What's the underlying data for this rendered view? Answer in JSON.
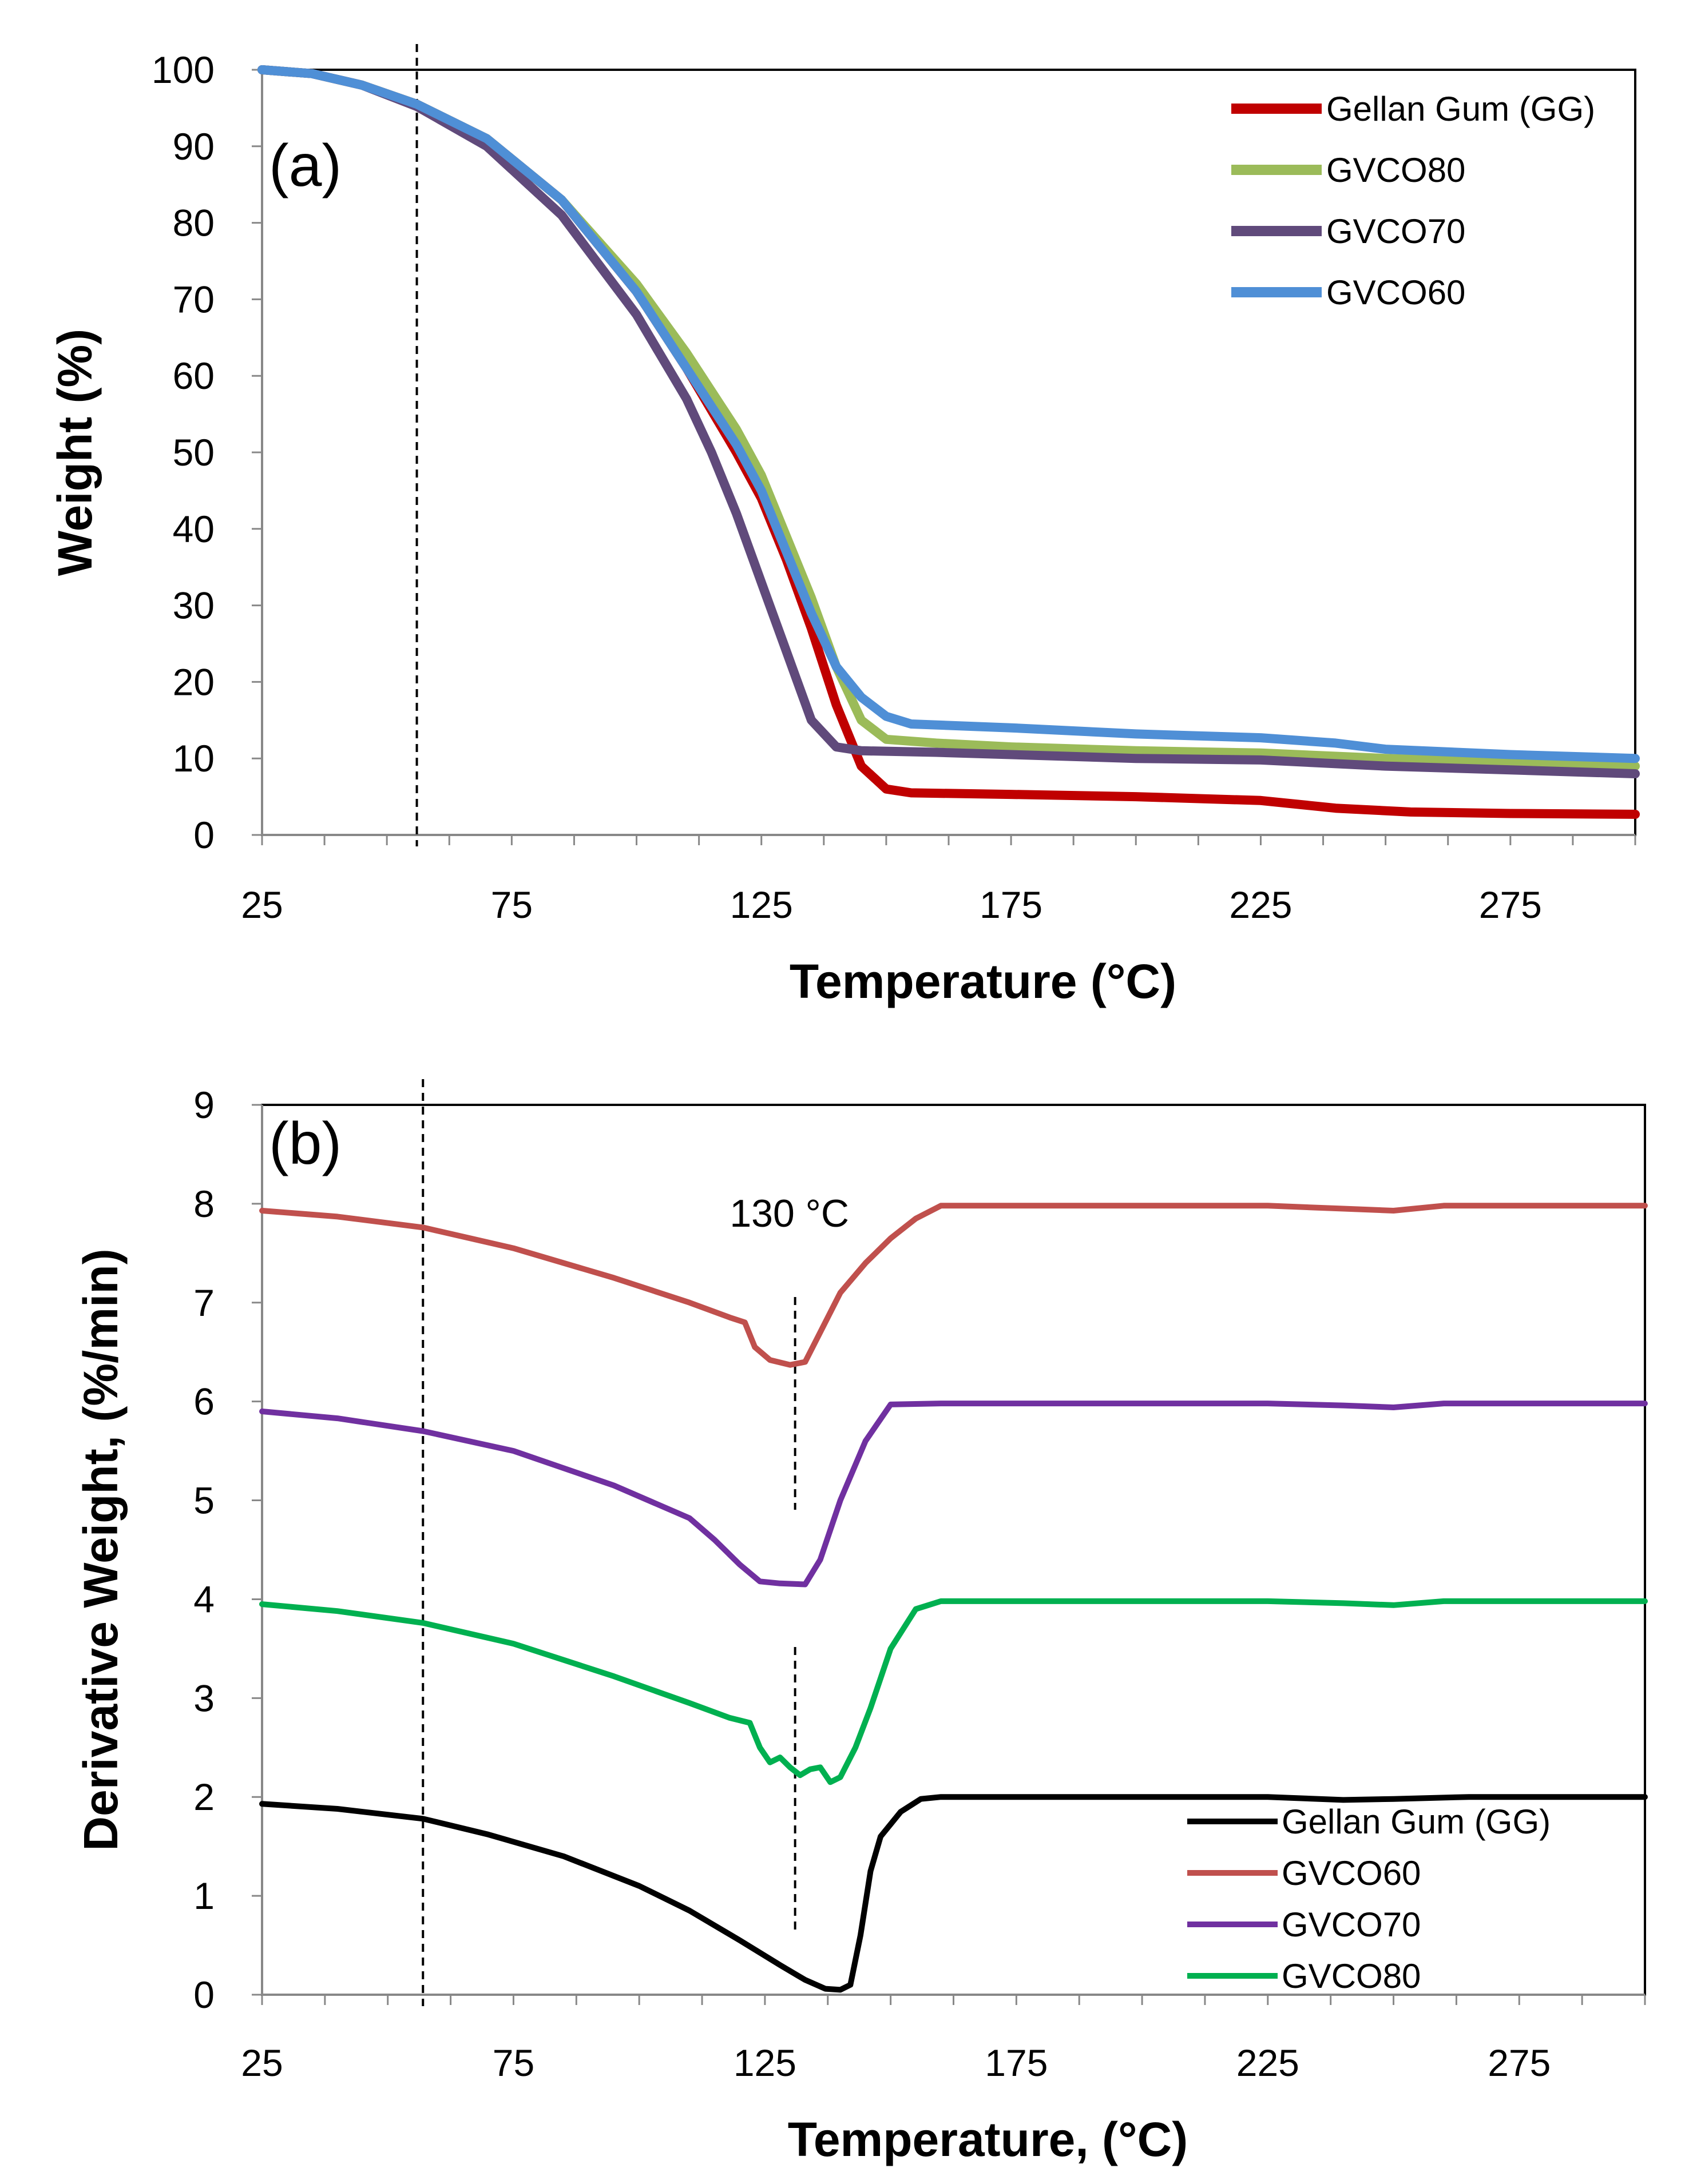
{
  "chart_data": [
    {
      "type": "line",
      "panel_label": "(a)",
      "title": "",
      "xlabel": "Temperature (°C)",
      "ylabel": "Weight (%)",
      "xlim": [
        25,
        300
      ],
      "ylim": [
        0,
        100
      ],
      "xticks": [
        25,
        75,
        125,
        175,
        225,
        275
      ],
      "yticks": [
        0,
        10,
        20,
        30,
        40,
        50,
        60,
        70,
        80,
        90,
        100
      ],
      "reference_line_x": 56,
      "legend_position": "top-right",
      "series": [
        {
          "name": "Gellan Gum (GG)",
          "color": "#c00000",
          "points": [
            [
              25,
              100
            ],
            [
              35,
              99.5
            ],
            [
              45,
              98
            ],
            [
              56,
              95.5
            ],
            [
              70,
              91
            ],
            [
              85,
              83
            ],
            [
              100,
              71
            ],
            [
              110,
              61
            ],
            [
              120,
              50
            ],
            [
              125,
              44
            ],
            [
              130,
              36
            ],
            [
              135,
              27
            ],
            [
              140,
              17
            ],
            [
              145,
              9
            ],
            [
              150,
              6
            ],
            [
              155,
              5.5
            ],
            [
              175,
              5.3
            ],
            [
              200,
              5
            ],
            [
              225,
              4.5
            ],
            [
              240,
              3.5
            ],
            [
              255,
              3
            ],
            [
              275,
              2.8
            ],
            [
              300,
              2.7
            ]
          ]
        },
        {
          "name": "GVCO80",
          "color": "#9bbb59",
          "points": [
            [
              25,
              100
            ],
            [
              35,
              99.5
            ],
            [
              45,
              98
            ],
            [
              56,
              95.5
            ],
            [
              70,
              91
            ],
            [
              85,
              83
            ],
            [
              100,
              72
            ],
            [
              110,
              63
            ],
            [
              120,
              53
            ],
            [
              125,
              47
            ],
            [
              130,
              39
            ],
            [
              135,
              31
            ],
            [
              140,
              22
            ],
            [
              145,
              15
            ],
            [
              150,
              12.5
            ],
            [
              160,
              12
            ],
            [
              175,
              11.5
            ],
            [
              200,
              11
            ],
            [
              225,
              10.7
            ],
            [
              250,
              10
            ],
            [
              275,
              9.5
            ],
            [
              300,
              9
            ]
          ]
        },
        {
          "name": "GVCO70",
          "color": "#604a7b",
          "points": [
            [
              25,
              100
            ],
            [
              35,
              99.5
            ],
            [
              45,
              98
            ],
            [
              56,
              95.2
            ],
            [
              70,
              90
            ],
            [
              85,
              81
            ],
            [
              100,
              68
            ],
            [
              110,
              57
            ],
            [
              115,
              50
            ],
            [
              120,
              42
            ],
            [
              125,
              33
            ],
            [
              130,
              24
            ],
            [
              135,
              15
            ],
            [
              140,
              11.5
            ],
            [
              145,
              11
            ],
            [
              160,
              10.8
            ],
            [
              175,
              10.5
            ],
            [
              200,
              10
            ],
            [
              225,
              9.8
            ],
            [
              250,
              9
            ],
            [
              275,
              8.5
            ],
            [
              300,
              8
            ]
          ]
        },
        {
          "name": "GVCO60",
          "color": "#4f8fd6",
          "points": [
            [
              25,
              100
            ],
            [
              35,
              99.5
            ],
            [
              45,
              98
            ],
            [
              56,
              95.5
            ],
            [
              70,
              91
            ],
            [
              85,
              83
            ],
            [
              100,
              71
            ],
            [
              110,
              61
            ],
            [
              120,
              51
            ],
            [
              125,
              45
            ],
            [
              130,
              37
            ],
            [
              135,
              29
            ],
            [
              140,
              22
            ],
            [
              145,
              18
            ],
            [
              150,
              15.5
            ],
            [
              155,
              14.5
            ],
            [
              175,
              14
            ],
            [
              200,
              13.2
            ],
            [
              225,
              12.7
            ],
            [
              240,
              12
            ],
            [
              250,
              11.2
            ],
            [
              275,
              10.5
            ],
            [
              300,
              10
            ]
          ]
        }
      ]
    },
    {
      "type": "line",
      "panel_label": "(b)",
      "title": "",
      "xlabel": "Temperature, (°C)",
      "ylabel": "Derivative Weight, (%/min)",
      "xlim": [
        25,
        300
      ],
      "ylim": [
        0,
        9
      ],
      "xticks": [
        25,
        75,
        125,
        175,
        225,
        275
      ],
      "yticks": [
        0,
        1,
        2,
        3,
        4,
        5,
        6,
        7,
        8,
        9
      ],
      "reference_line_x": 57,
      "annotation": {
        "text": "130 °C",
        "x": 131
      },
      "legend_position": "bottom-right",
      "series": [
        {
          "name": "Gellan Gum (GG)",
          "color": "#000000",
          "points": [
            [
              25,
              1.93
            ],
            [
              40,
              1.88
            ],
            [
              57,
              1.78
            ],
            [
              70,
              1.62
            ],
            [
              85,
              1.4
            ],
            [
              100,
              1.1
            ],
            [
              110,
              0.85
            ],
            [
              120,
              0.55
            ],
            [
              128,
              0.3
            ],
            [
              133,
              0.15
            ],
            [
              137,
              0.06
            ],
            [
              140,
              0.05
            ],
            [
              142,
              0.1
            ],
            [
              144,
              0.6
            ],
            [
              146,
              1.25
            ],
            [
              148,
              1.6
            ],
            [
              152,
              1.85
            ],
            [
              156,
              1.98
            ],
            [
              160,
              2.0
            ],
            [
              225,
              2.0
            ],
            [
              240,
              1.97
            ],
            [
              250,
              1.98
            ],
            [
              265,
              2.0
            ],
            [
              300,
              2.0
            ]
          ]
        },
        {
          "name": "GVCO60",
          "color": "#c0504d",
          "points": [
            [
              25,
              7.93
            ],
            [
              40,
              7.87
            ],
            [
              57,
              7.76
            ],
            [
              75,
              7.55
            ],
            [
              95,
              7.25
            ],
            [
              110,
              7.0
            ],
            [
              118,
              6.85
            ],
            [
              121,
              6.8
            ],
            [
              123,
              6.55
            ],
            [
              126,
              6.42
            ],
            [
              130,
              6.37
            ],
            [
              133,
              6.4
            ],
            [
              136,
              6.7
            ],
            [
              140,
              7.1
            ],
            [
              145,
              7.4
            ],
            [
              150,
              7.65
            ],
            [
              155,
              7.85
            ],
            [
              160,
              7.98
            ],
            [
              175,
              7.98
            ],
            [
              225,
              7.98
            ],
            [
              240,
              7.95
            ],
            [
              250,
              7.93
            ],
            [
              260,
              7.98
            ],
            [
              300,
              7.98
            ]
          ]
        },
        {
          "name": "GVCO70",
          "color": "#7030a0",
          "points": [
            [
              25,
              5.9
            ],
            [
              40,
              5.83
            ],
            [
              57,
              5.7
            ],
            [
              75,
              5.5
            ],
            [
              95,
              5.15
            ],
            [
              110,
              4.82
            ],
            [
              115,
              4.6
            ],
            [
              120,
              4.35
            ],
            [
              124,
              4.18
            ],
            [
              128,
              4.16
            ],
            [
              133,
              4.15
            ],
            [
              136,
              4.4
            ],
            [
              140,
              5.0
            ],
            [
              145,
              5.6
            ],
            [
              150,
              5.97
            ],
            [
              160,
              5.98
            ],
            [
              200,
              5.98
            ],
            [
              225,
              5.98
            ],
            [
              240,
              5.96
            ],
            [
              250,
              5.94
            ],
            [
              260,
              5.98
            ],
            [
              300,
              5.98
            ]
          ]
        },
        {
          "name": "GVCO80",
          "color": "#00b050",
          "points": [
            [
              25,
              3.95
            ],
            [
              40,
              3.88
            ],
            [
              57,
              3.76
            ],
            [
              75,
              3.55
            ],
            [
              95,
              3.22
            ],
            [
              110,
              2.95
            ],
            [
              118,
              2.8
            ],
            [
              122,
              2.75
            ],
            [
              124,
              2.5
            ],
            [
              126,
              2.35
            ],
            [
              128,
              2.4
            ],
            [
              130,
              2.3
            ],
            [
              132,
              2.22
            ],
            [
              134,
              2.28
            ],
            [
              136,
              2.3
            ],
            [
              138,
              2.15
            ],
            [
              140,
              2.2
            ],
            [
              143,
              2.5
            ],
            [
              146,
              2.9
            ],
            [
              150,
              3.5
            ],
            [
              155,
              3.9
            ],
            [
              160,
              3.98
            ],
            [
              200,
              3.98
            ],
            [
              225,
              3.98
            ],
            [
              240,
              3.96
            ],
            [
              250,
              3.94
            ],
            [
              260,
              3.98
            ],
            [
              300,
              3.98
            ]
          ]
        }
      ]
    }
  ]
}
